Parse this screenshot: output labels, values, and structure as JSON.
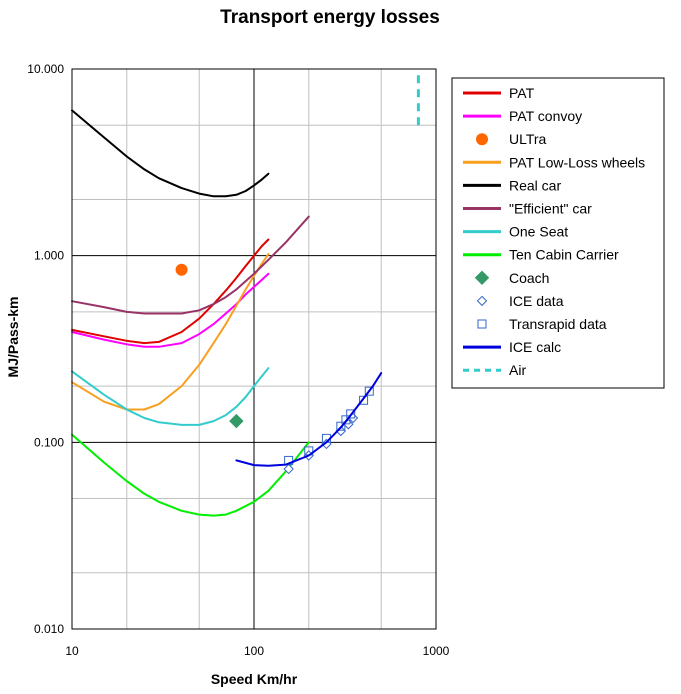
{
  "chart_data": {
    "type": "line",
    "title": "Transport energy losses",
    "xlabel": "Speed Km/hr",
    "ylabel": "MJ/Pass-km",
    "x_scale": "log",
    "y_scale": "log",
    "xlim": [
      10,
      1000
    ],
    "ylim": [
      0.01,
      10
    ],
    "x_ticks": [
      "10",
      "100",
      "1000"
    ],
    "y_ticks": [
      "0.010",
      "0.100",
      "1.000",
      "10.000"
    ],
    "grid": true,
    "legend_position": "right",
    "series": [
      {
        "name": "PAT",
        "style": "line",
        "color": "#e00000",
        "x": [
          10,
          15,
          20,
          25,
          30,
          40,
          50,
          60,
          70,
          80,
          90,
          100,
          110,
          120
        ],
        "y": [
          0.4,
          0.37,
          0.35,
          0.34,
          0.345,
          0.39,
          0.46,
          0.55,
          0.65,
          0.76,
          0.88,
          1.0,
          1.12,
          1.22
        ]
      },
      {
        "name": "PAT convoy",
        "style": "line",
        "color": "#ff00ff",
        "x": [
          10,
          15,
          20,
          25,
          30,
          40,
          50,
          60,
          70,
          80,
          90,
          100,
          110,
          120
        ],
        "y": [
          0.39,
          0.355,
          0.335,
          0.325,
          0.325,
          0.34,
          0.38,
          0.43,
          0.49,
          0.55,
          0.62,
          0.68,
          0.74,
          0.8
        ]
      },
      {
        "name": "ULTra",
        "style": "marker",
        "marker": "circle",
        "color": "#ff6600",
        "x": [
          40
        ],
        "y": [
          0.84
        ]
      },
      {
        "name": "PAT Low-Loss wheels",
        "style": "line",
        "color": "#f7a020",
        "x": [
          10,
          15,
          20,
          25,
          30,
          40,
          50,
          60,
          70,
          80,
          90,
          100,
          110,
          120
        ],
        "y": [
          0.21,
          0.165,
          0.15,
          0.15,
          0.16,
          0.2,
          0.26,
          0.34,
          0.43,
          0.54,
          0.66,
          0.78,
          0.9,
          1.02
        ]
      },
      {
        "name": "Real car",
        "style": "line",
        "color": "#000000",
        "x": [
          10,
          15,
          20,
          25,
          30,
          40,
          50,
          60,
          70,
          80,
          90,
          100,
          110,
          120
        ],
        "y": [
          6.0,
          4.3,
          3.4,
          2.9,
          2.6,
          2.3,
          2.15,
          2.08,
          2.08,
          2.12,
          2.22,
          2.38,
          2.55,
          2.75
        ]
      },
      {
        "name": "\"Efficient\" car",
        "style": "line",
        "color": "#993366",
        "x": [
          10,
          15,
          20,
          25,
          30,
          40,
          50,
          60,
          70,
          80,
          100,
          120,
          150,
          200
        ],
        "y": [
          0.57,
          0.53,
          0.5,
          0.49,
          0.49,
          0.49,
          0.51,
          0.55,
          0.6,
          0.66,
          0.8,
          0.95,
          1.18,
          1.62
        ]
      },
      {
        "name": "One Seat",
        "style": "line",
        "color": "#33cccc",
        "x": [
          10,
          15,
          20,
          25,
          30,
          40,
          50,
          60,
          70,
          80,
          90,
          100,
          110,
          120
        ],
        "y": [
          0.24,
          0.18,
          0.15,
          0.135,
          0.128,
          0.124,
          0.124,
          0.13,
          0.14,
          0.155,
          0.175,
          0.2,
          0.225,
          0.25
        ]
      },
      {
        "name": "Ten Cabin Carrier",
        "style": "line",
        "color": "#00ee00",
        "x": [
          10,
          15,
          20,
          25,
          30,
          40,
          50,
          60,
          70,
          80,
          100,
          120,
          150,
          200
        ],
        "y": [
          0.11,
          0.078,
          0.062,
          0.053,
          0.048,
          0.043,
          0.041,
          0.0405,
          0.041,
          0.043,
          0.048,
          0.055,
          0.07,
          0.1
        ]
      },
      {
        "name": "Coach",
        "style": "marker",
        "marker": "diamond-filled",
        "color": "#339966",
        "x": [
          80
        ],
        "y": [
          0.13
        ]
      },
      {
        "name": "ICE data",
        "style": "marker",
        "marker": "diamond-open",
        "color": "#3366cc",
        "x": [
          155,
          200,
          250,
          300,
          330,
          350
        ],
        "y": [
          0.072,
          0.085,
          0.098,
          0.115,
          0.125,
          0.135
        ]
      },
      {
        "name": "Transrapid data",
        "style": "marker",
        "marker": "square-open",
        "color": "#3366cc",
        "x": [
          155,
          200,
          250,
          300,
          320,
          340,
          400,
          430
        ],
        "y": [
          0.08,
          0.09,
          0.105,
          0.122,
          0.132,
          0.142,
          0.168,
          0.188
        ]
      },
      {
        "name": "ICE calc",
        "style": "line",
        "color": "#0000dd",
        "x": [
          80,
          100,
          120,
          150,
          200,
          250,
          300,
          350,
          400,
          450,
          500
        ],
        "y": [
          0.08,
          0.0755,
          0.075,
          0.076,
          0.085,
          0.1,
          0.12,
          0.145,
          0.172,
          0.2,
          0.235
        ]
      },
      {
        "name": "Air",
        "style": "dashed",
        "color": "#33cccc",
        "x": [
          800,
          800
        ],
        "y": [
          5.0,
          10.0
        ]
      }
    ]
  }
}
